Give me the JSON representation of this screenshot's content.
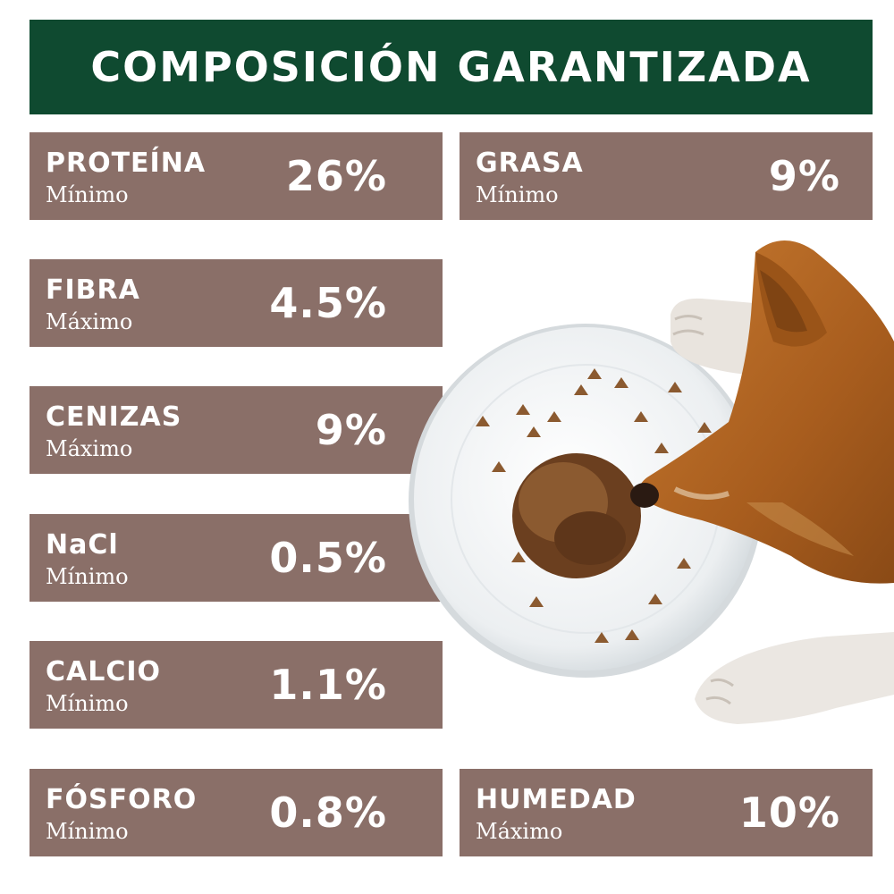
{
  "title": "COMPOSICIÓN GARANTIZADA",
  "colors": {
    "title_bg": "#0f4a30",
    "box_bg": "#8a6f68",
    "text": "#ffffff"
  },
  "nutrients": [
    {
      "name": "PROTEÍNA",
      "qualifier": "Mínimo",
      "value": "26%"
    },
    {
      "name": "GRASA",
      "qualifier": "Mínimo",
      "value": "9%"
    },
    {
      "name": "FIBRA",
      "qualifier": "Máximo",
      "value": "4.5%"
    },
    {
      "name": "CENIZAS",
      "qualifier": "Máximo",
      "value": "9%"
    },
    {
      "name": "NaCl",
      "qualifier": "Mínimo",
      "value": "0.5%"
    },
    {
      "name": "CALCIO",
      "qualifier": "Mínimo",
      "value": "1.1%"
    },
    {
      "name": "FÓSFORO",
      "qualifier": "Mínimo",
      "value": "0.8%"
    },
    {
      "name": "HUMEDAD",
      "qualifier": "Máximo",
      "value": "10%"
    }
  ]
}
